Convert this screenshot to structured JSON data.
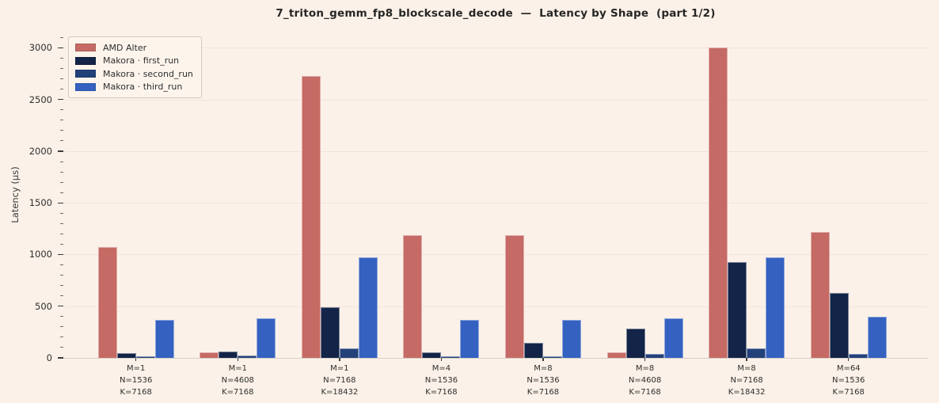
{
  "page": {
    "background_color": "#fcf1e8"
  },
  "chart_data": {
    "type": "bar",
    "title": "7_triton_gemm_fp8_blockscale_decode  —  Latency by Shape  (part 1/2)",
    "xlabel": "",
    "ylabel": "Latency (µs)",
    "ylim": [
      0,
      3157
    ],
    "yticks": [
      0,
      500,
      1000,
      1500,
      2000,
      2500,
      3000
    ],
    "minor_tick_step": 100,
    "grid": true,
    "legend_position": "upper-left",
    "categories": [
      [
        "M=1",
        "N=1536",
        "K=7168"
      ],
      [
        "M=1",
        "N=4608",
        "K=7168"
      ],
      [
        "M=1",
        "N=7168",
        "K=18432"
      ],
      [
        "M=4",
        "N=1536",
        "K=7168"
      ],
      [
        "M=8",
        "N=1536",
        "K=7168"
      ],
      [
        "M=8",
        "N=4608",
        "K=7168"
      ],
      [
        "M=8",
        "N=7168",
        "K=18432"
      ],
      [
        "M=64",
        "N=1536",
        "K=7168"
      ]
    ],
    "series": [
      {
        "name": "AMD Alter",
        "color": "#c56a64",
        "values": [
          1075,
          55,
          2730,
          1185,
          1190,
          55,
          3000,
          1215
        ]
      },
      {
        "name": "Makora · first_run",
        "color": "#132448",
        "values": [
          45,
          65,
          490,
          55,
          145,
          280,
          930,
          630
        ]
      },
      {
        "name": "Makora · second_run",
        "color": "#234179",
        "values": [
          12,
          25,
          90,
          12,
          15,
          35,
          95,
          40
        ]
      },
      {
        "name": "Makora · third_run",
        "color": "#3562c0",
        "values": [
          365,
          380,
          970,
          370,
          370,
          380,
          970,
          395
        ]
      }
    ],
    "axis_colors": {
      "tick_color": "#3a3a3a",
      "grid_color": "#f2e3da",
      "spine_color": "#d5cdc4",
      "text_color": "#2e2e2e",
      "title_color": "#262626"
    }
  }
}
